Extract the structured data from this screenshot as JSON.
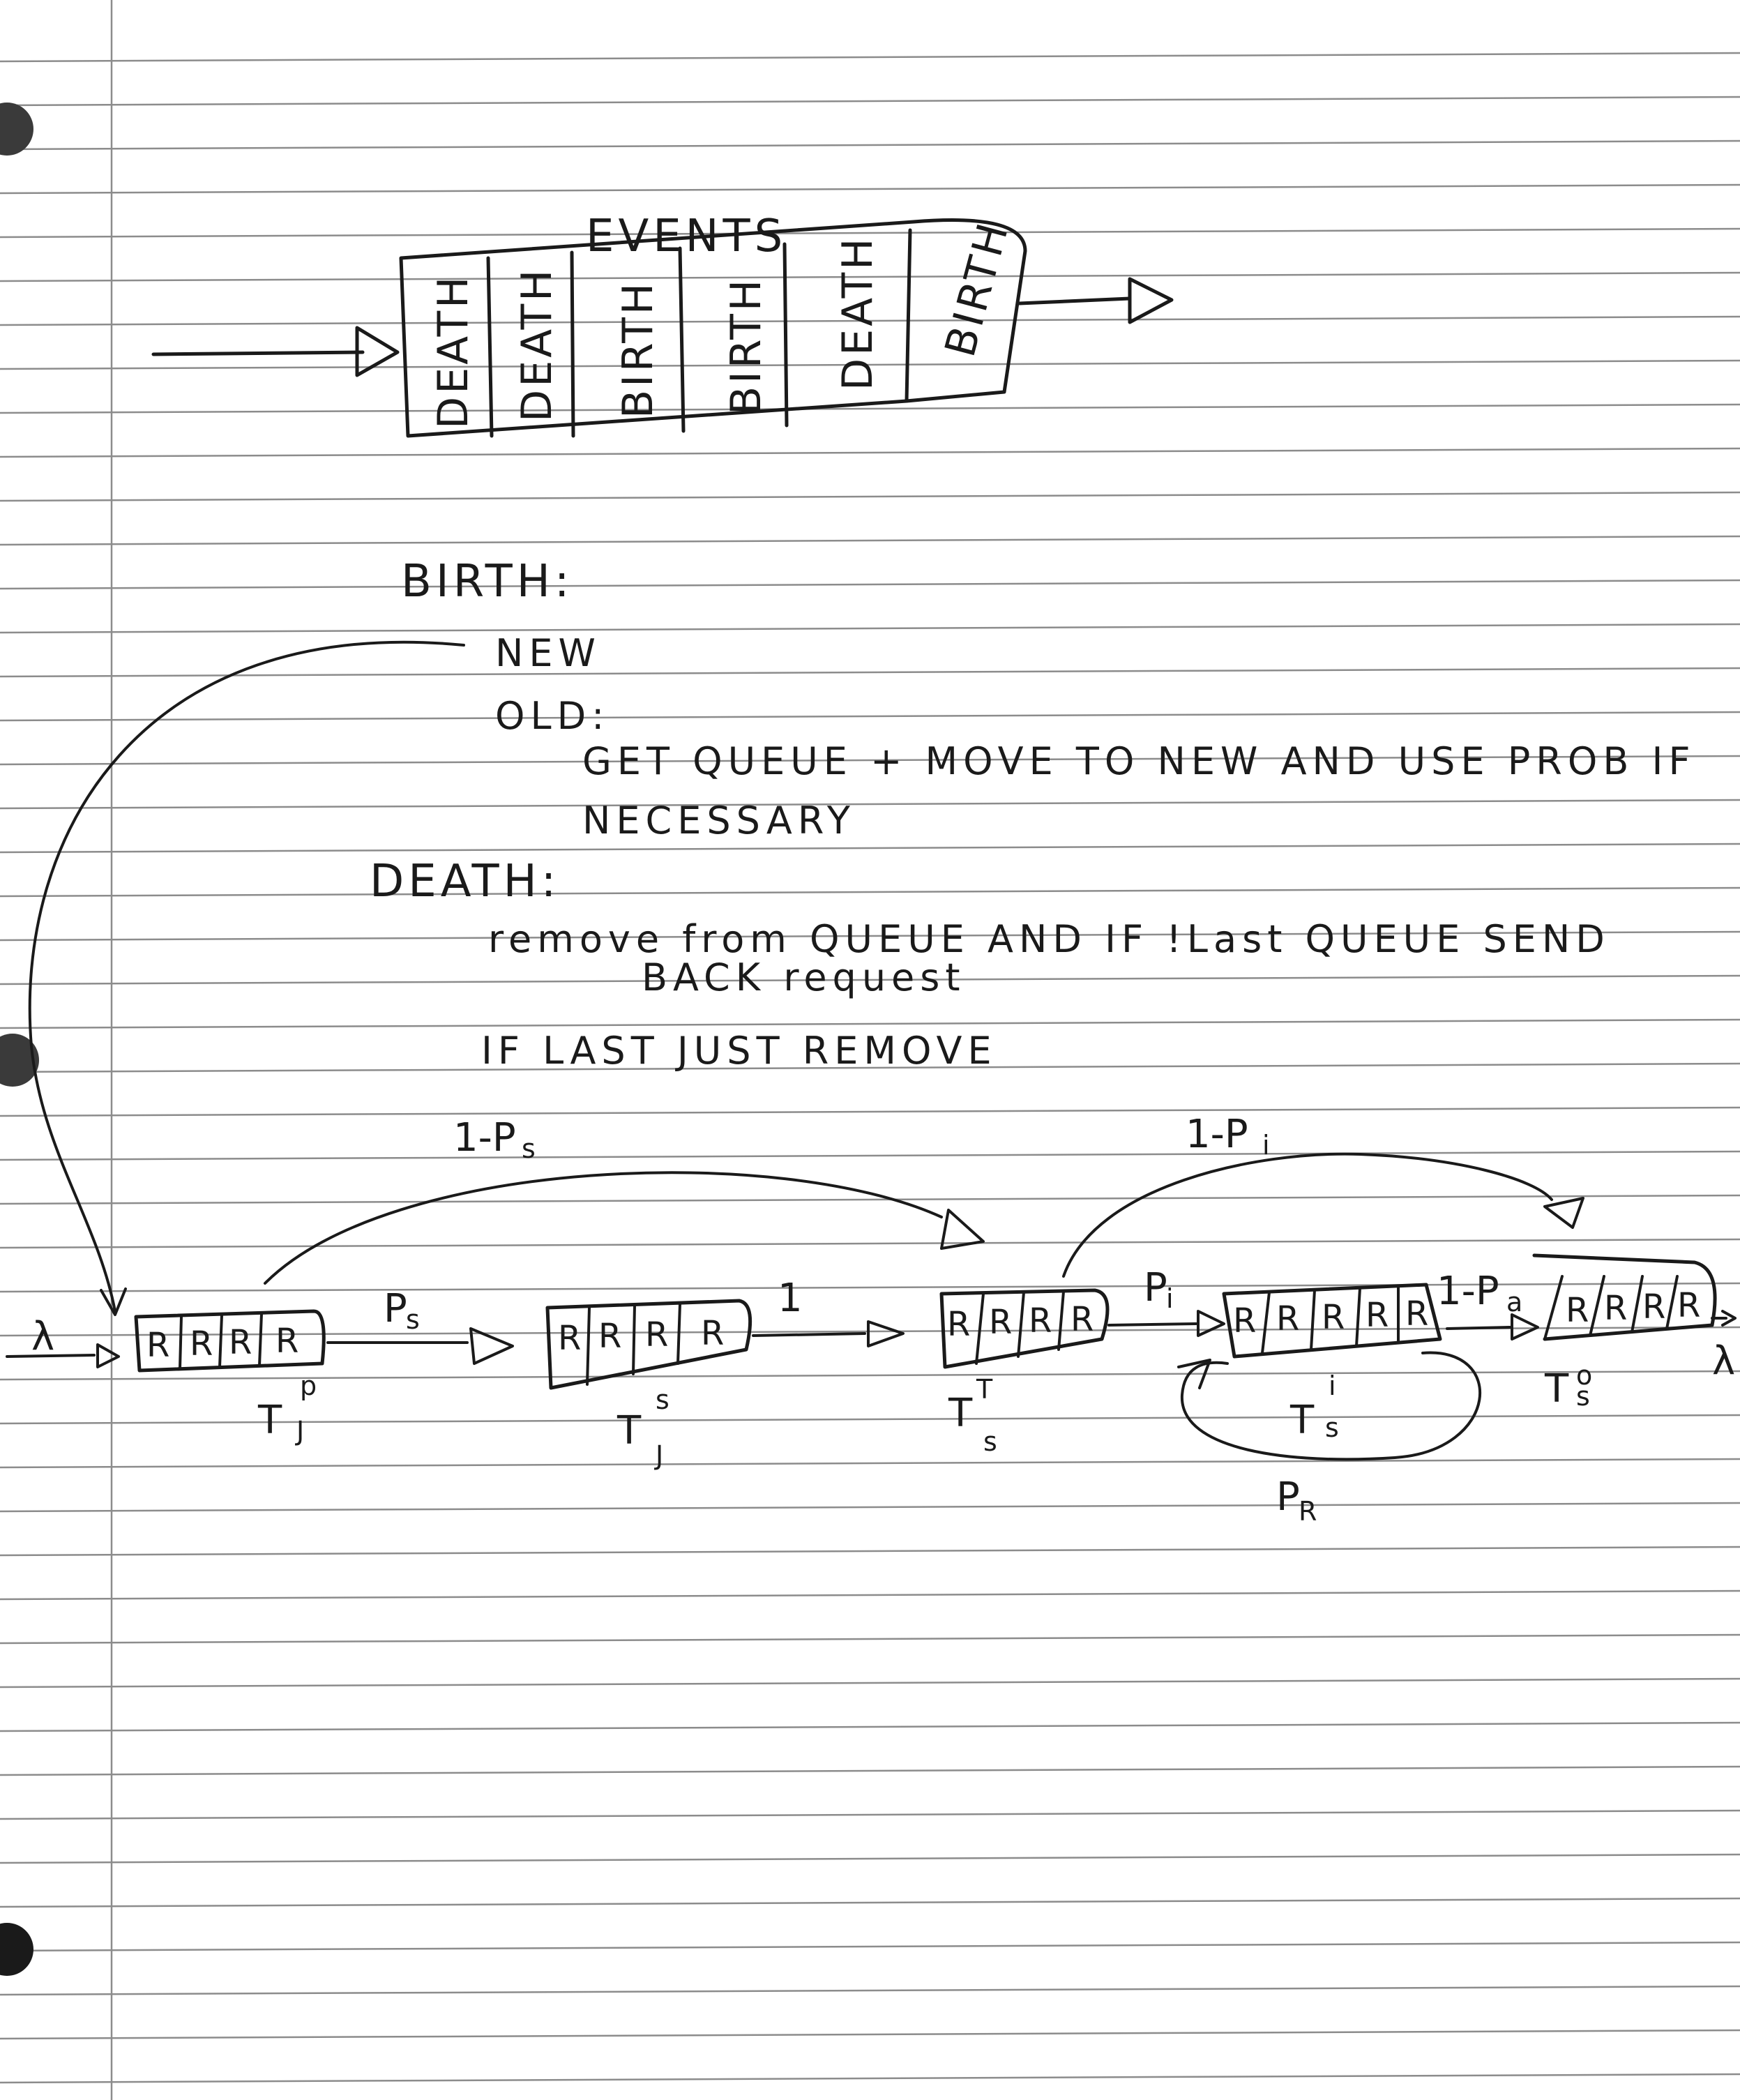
{
  "events_queue": {
    "title": "EVENTS",
    "cells": [
      "DEATH",
      "DEATH",
      "BIRTH",
      "BIRTH",
      "DEATH",
      "BIRTH"
    ]
  },
  "notes": {
    "birth_heading": "BIRTH:",
    "birth_new": "NEW",
    "birth_old": "OLD:",
    "birth_old_line1": "GET QUEUE + MOVE TO NEW AND USE PROB IF",
    "birth_old_line2": "NECESSARY",
    "death_heading": "DEATH:",
    "death_line1": "remove from QUEUE AND IF !Last QUEUE SEND",
    "death_line2": "BACK request",
    "death_line3": "IF LAST JUST REMOVE"
  },
  "network": {
    "input_symbol": "λ",
    "output_symbol": "λ",
    "cell_label": "R",
    "queues": [
      {
        "name": "T",
        "sup": "p",
        "sub": "J"
      },
      {
        "name": "T",
        "sup": "s",
        "sub": "J"
      },
      {
        "name": "T",
        "sup": "T",
        "sub": "s"
      },
      {
        "name": "T",
        "sup": "i",
        "sub": "s"
      },
      {
        "name": "T",
        "sup": "o",
        "sub": "s"
      }
    ],
    "edges": {
      "p1_to_q2": "P",
      "p1_to_q2_sub": "s",
      "q2_to_q3": "1",
      "q3_to_q4": "P",
      "q3_to_q4_sub": "i",
      "q4_to_q5": "1-P",
      "q4_to_q5_sub": "a",
      "bypass_1": "1-P",
      "bypass_1_sub": "s",
      "bypass_2": "1-P",
      "bypass_2_sub": "i",
      "loop": "P",
      "loop_sub": "R"
    }
  }
}
